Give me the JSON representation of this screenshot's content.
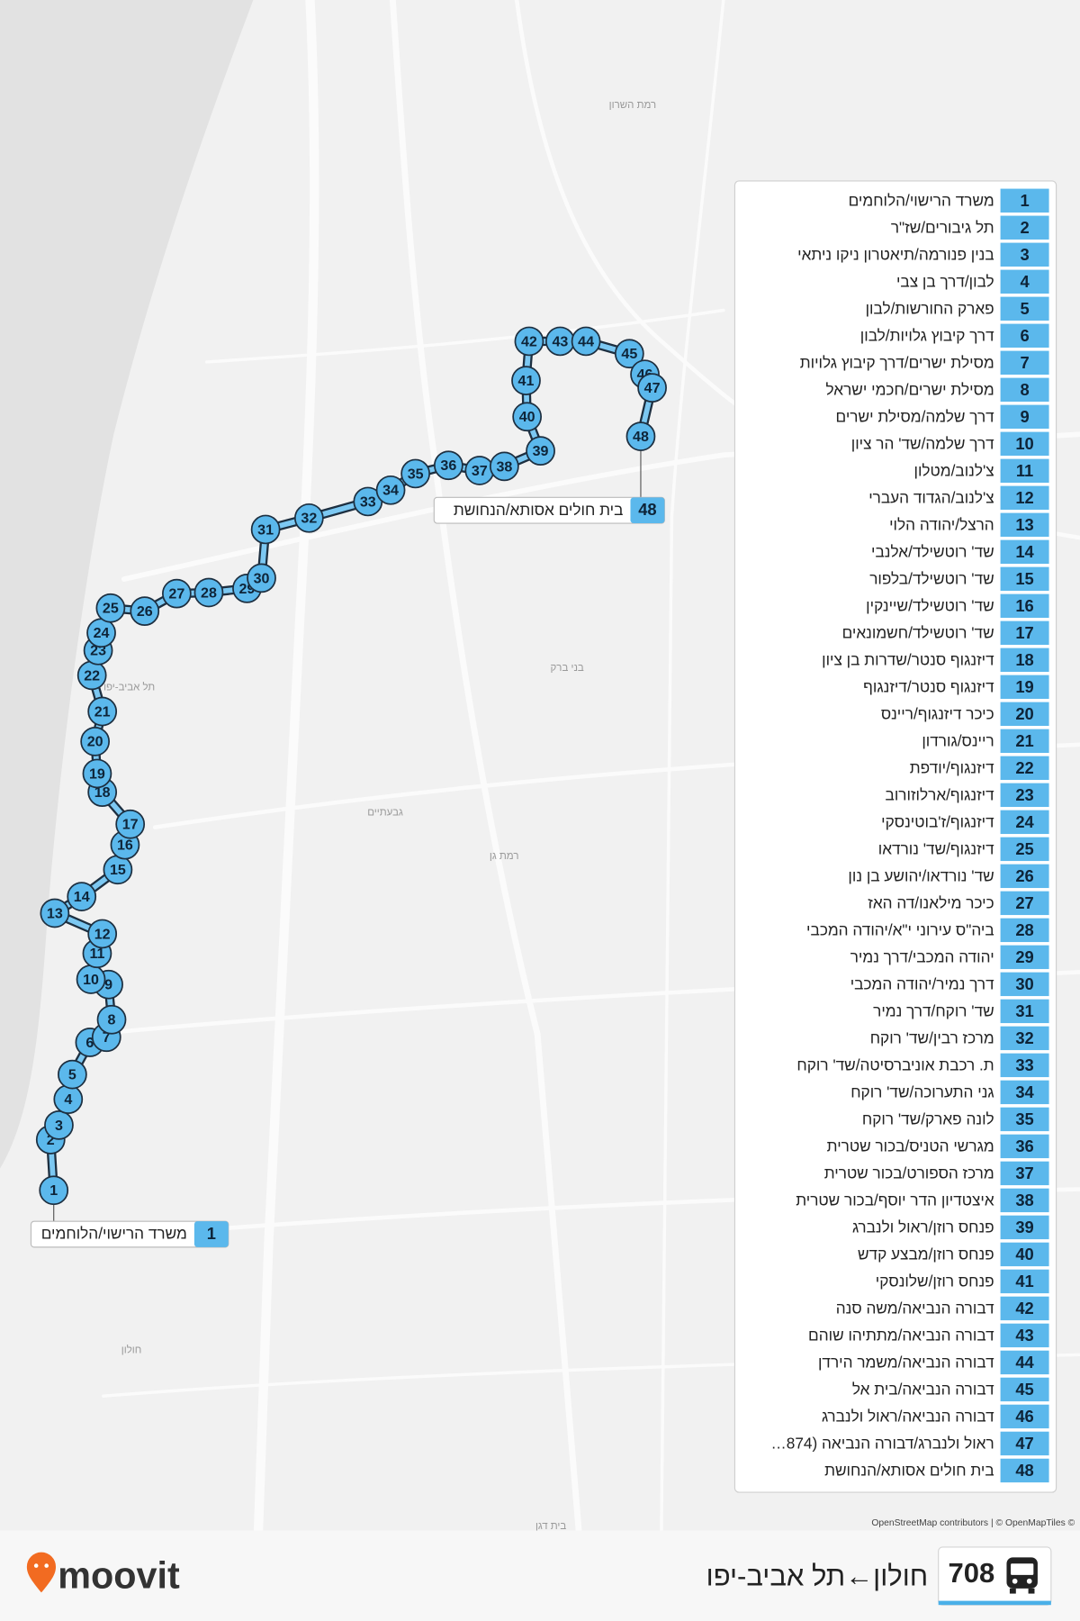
{
  "route": {
    "number": "708",
    "title": "חולון←תל אביב-יפו"
  },
  "stops": [
    {
      "number": 1,
      "name": "משרד הרישוי/הלוחמים"
    },
    {
      "number": 2,
      "name": "תל גיבורים/שז\"ר"
    },
    {
      "number": 3,
      "name": "בנין פנורמה/תיאטרון ניקו ניתאי"
    },
    {
      "number": 4,
      "name": "לבון/דרך בן צבי"
    },
    {
      "number": 5,
      "name": "פארק החורשות/לבון"
    },
    {
      "number": 6,
      "name": "דרך קיבוץ גלויות/לבון"
    },
    {
      "number": 7,
      "name": "מסילת ישרים/דרך קיבוץ גלויות"
    },
    {
      "number": 8,
      "name": "מסילת ישרים/חכמי ישראל"
    },
    {
      "number": 9,
      "name": "דרך שלמה/מסילת ישרים"
    },
    {
      "number": 10,
      "name": "דרך שלמה/שד' הר ציון"
    },
    {
      "number": 11,
      "name": "צ'לנוב/מטלון"
    },
    {
      "number": 12,
      "name": "צ'לנוב/הגדוד העברי"
    },
    {
      "number": 13,
      "name": "הרצל/יהודה הלוי"
    },
    {
      "number": 14,
      "name": "שד' רוטשילד/אלנבי"
    },
    {
      "number": 15,
      "name": "שד' רוטשילד/בלפור"
    },
    {
      "number": 16,
      "name": "שד' רוטשילד/שיינקין"
    },
    {
      "number": 17,
      "name": "שד' רוטשילד/חשמונאים"
    },
    {
      "number": 18,
      "name": "דיזנגוף סנטר/שדרות בן ציון"
    },
    {
      "number": 19,
      "name": "דיזנגוף סנטר/דיזנגוף"
    },
    {
      "number": 20,
      "name": "כיכר דיזנגוף/ריינס"
    },
    {
      "number": 21,
      "name": "ריינס/גורדון"
    },
    {
      "number": 22,
      "name": "דיזנגוף/יודפת"
    },
    {
      "number": 23,
      "name": "דיזנגוף/ארלוזורוב"
    },
    {
      "number": 24,
      "name": "דיזנגוף/ז'בוטינסקי"
    },
    {
      "number": 25,
      "name": "דיזנגוף/שד' נורדאו"
    },
    {
      "number": 26,
      "name": "שד' נורדאו/יהושע בן נון"
    },
    {
      "number": 27,
      "name": "כיכר מילאנו/דה האז"
    },
    {
      "number": 28,
      "name": "ביה\"ס עירוני י\"א/יהודה המכבי"
    },
    {
      "number": 29,
      "name": "יהודה המכבי/דרך נמיר"
    },
    {
      "number": 30,
      "name": "דרך נמיר/יהודה המכבי"
    },
    {
      "number": 31,
      "name": "שד' רוקח/דרך נמיר"
    },
    {
      "number": 32,
      "name": "מרכז רבין/שד' רוקח"
    },
    {
      "number": 33,
      "name": "ת. רכבת אוניברסיטה/שד' רוקח"
    },
    {
      "number": 34,
      "name": "גני התערוכה/שד' רוקח"
    },
    {
      "number": 35,
      "name": "לונה פארק/שד' רוקח"
    },
    {
      "number": 36,
      "name": "מגרשי הטניס/בכור שטרית"
    },
    {
      "number": 37,
      "name": "מרכז הספורט/בכור שטרית"
    },
    {
      "number": 38,
      "name": "איצטדיון הדר יוסף/בכור שטרית"
    },
    {
      "number": 39,
      "name": "פנחס רוזן/ראול ולנברג"
    },
    {
      "number": 40,
      "name": "פנחס רוזן/מבצע קדש"
    },
    {
      "number": 41,
      "name": "פנחס רוזן/שלונסקי"
    },
    {
      "number": 42,
      "name": "דבורה הנביאה/משה סנה"
    },
    {
      "number": 43,
      "name": "דבורה הנביאה/מתתיהו שוהם"
    },
    {
      "number": 44,
      "name": "דבורה הנביאה/משמר הירדן"
    },
    {
      "number": 45,
      "name": "דבורה הנביאה/בית אל"
    },
    {
      "number": 46,
      "name": "דבורה הנביאה/ראול ולנברג"
    },
    {
      "number": 47,
      "name": "ראול ולנברג/דבורה הנביאה (874…"
    },
    {
      "number": 48,
      "name": "בית חולים אסותא/הנחושת"
    }
  ],
  "map_labels": [
    "רמת השרון",
    "תל אביב-יפו",
    "בני ברק",
    "גבעתיים",
    "רמת גן",
    "חולון",
    "בית דגן"
  ],
  "attribution": "© OpenStreetMap contributors | © OpenMapTiles",
  "brand": "moovit"
}
